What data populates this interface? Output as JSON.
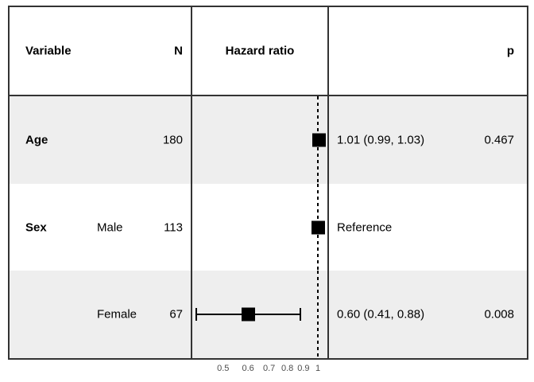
{
  "colors": {
    "border": "#333333",
    "row_stripe": "#eeeeee",
    "marker": "#000000",
    "axis_text": "#4d4d4d",
    "text": "#000000"
  },
  "header": {
    "variable": "Variable",
    "n": "N",
    "hazard_ratio": "Hazard ratio",
    "p": "p"
  },
  "rows": [
    {
      "variable": "Age",
      "level": "",
      "n": "180",
      "estimate": "1.01 (0.99, 1.03)",
      "p": "0.467"
    },
    {
      "variable": "Sex",
      "level": "Male",
      "n": "113",
      "estimate": "Reference",
      "p": ""
    },
    {
      "variable": "",
      "level": "Female",
      "n": "67",
      "estimate": "0.60 (0.41, 0.88)",
      "p": "0.008"
    }
  ],
  "chart_data": {
    "type": "forest",
    "x_scale": "log",
    "reference_line": 1,
    "x_ticks": [
      {
        "value": 0.5,
        "label": "0.5"
      },
      {
        "value": 0.6,
        "label": "0.6"
      },
      {
        "value": 0.7,
        "label": "0.7"
      },
      {
        "value": 0.8,
        "label": "0.8"
      },
      {
        "value": 0.9,
        "label": "0.9"
      },
      {
        "value": 1,
        "label": "1"
      }
    ],
    "points": [
      {
        "row": "Age",
        "n": 180,
        "hr": 1.01,
        "ci_low": 0.99,
        "ci_high": 1.03,
        "p": 0.467,
        "reference": false
      },
      {
        "row": "Sex Male",
        "n": 113,
        "hr": 1.0,
        "ci_low": null,
        "ci_high": null,
        "p": null,
        "reference": true
      },
      {
        "row": "Sex Female",
        "n": 67,
        "hr": 0.6,
        "ci_low": 0.41,
        "ci_high": 0.88,
        "p": 0.008,
        "reference": false
      }
    ]
  }
}
